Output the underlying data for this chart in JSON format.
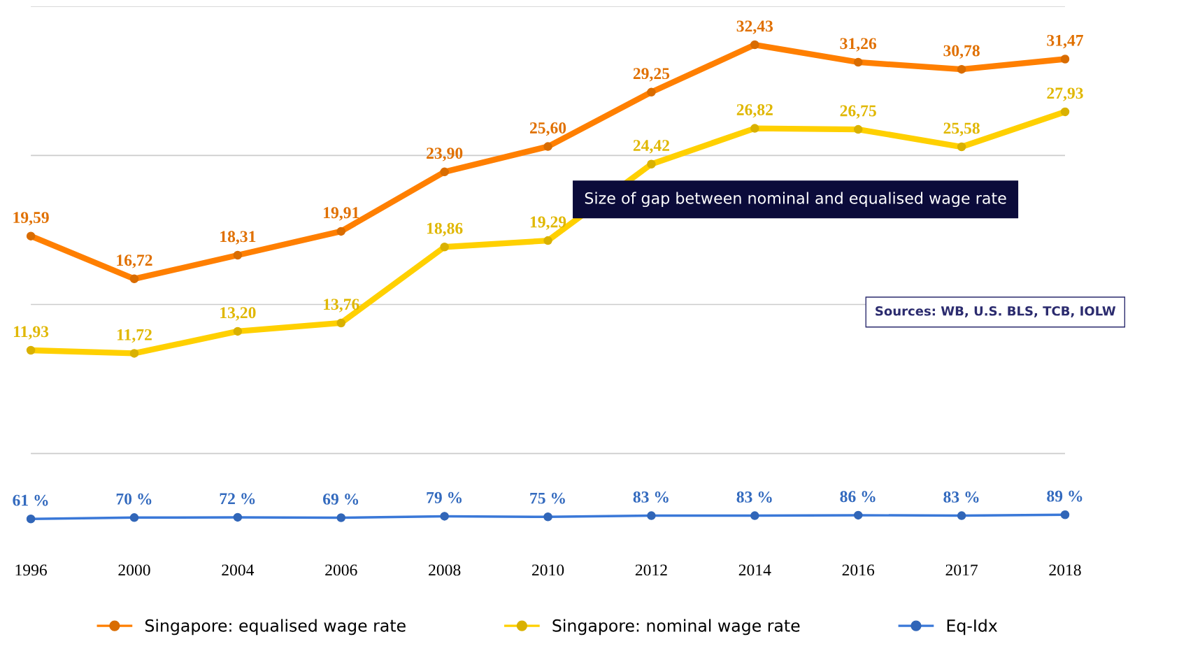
{
  "chart_data": {
    "type": "line",
    "categories": [
      "1996",
      "2000",
      "2004",
      "2006",
      "2008",
      "2010",
      "2012",
      "2014",
      "2016",
      "2017",
      "2018"
    ],
    "series": [
      {
        "name": "Singapore: equalised wage rate",
        "color": "#ff7f00",
        "values": [
          19.59,
          16.72,
          18.31,
          19.91,
          23.9,
          25.6,
          29.25,
          32.43,
          31.26,
          30.78,
          31.47
        ],
        "value_labels": [
          "19,59",
          "16,72",
          "18,31",
          "19,91",
          "23,90",
          "25,60",
          "29,25",
          "32,43",
          "31,26",
          "30,78",
          "31,47"
        ]
      },
      {
        "name": "Singapore: nominal wage rate",
        "color": "#ffd000",
        "values": [
          11.93,
          11.72,
          13.2,
          13.76,
          18.86,
          19.29,
          24.42,
          26.82,
          26.75,
          25.58,
          27.93
        ],
        "value_labels": [
          "11,93",
          "11,72",
          "13,20",
          "13,76",
          "18,86",
          "19,29",
          "24,42",
          "26,82",
          "26,75",
          "25,58",
          "27,93"
        ]
      },
      {
        "name": "Eq-Idx",
        "color": "#3a78d8",
        "values": [
          0.61,
          0.7,
          0.72,
          0.69,
          0.79,
          0.75,
          0.83,
          0.83,
          0.86,
          0.83,
          0.89
        ],
        "value_labels": [
          "61 %",
          "70 %",
          "72 %",
          "69 %",
          "79 %",
          "75 %",
          "83 %",
          "83 %",
          "86 %",
          "83 %",
          "89 %"
        ]
      }
    ],
    "yticks": [
      {
        "value": 5,
        "label": null
      },
      {
        "value": 15,
        "label": null
      },
      {
        "value": 25,
        "label": null
      },
      {
        "value": 35,
        "label": null
      }
    ],
    "grid": "y",
    "tick_labels": "x",
    "legend": "bottom",
    "marker": "circle",
    "line_style": "solid",
    "annotations": [
      "Size of gap between nominal and equalised wage rate",
      "Sources: WB, U.S. BLS, TCB, IOLW"
    ]
  }
}
